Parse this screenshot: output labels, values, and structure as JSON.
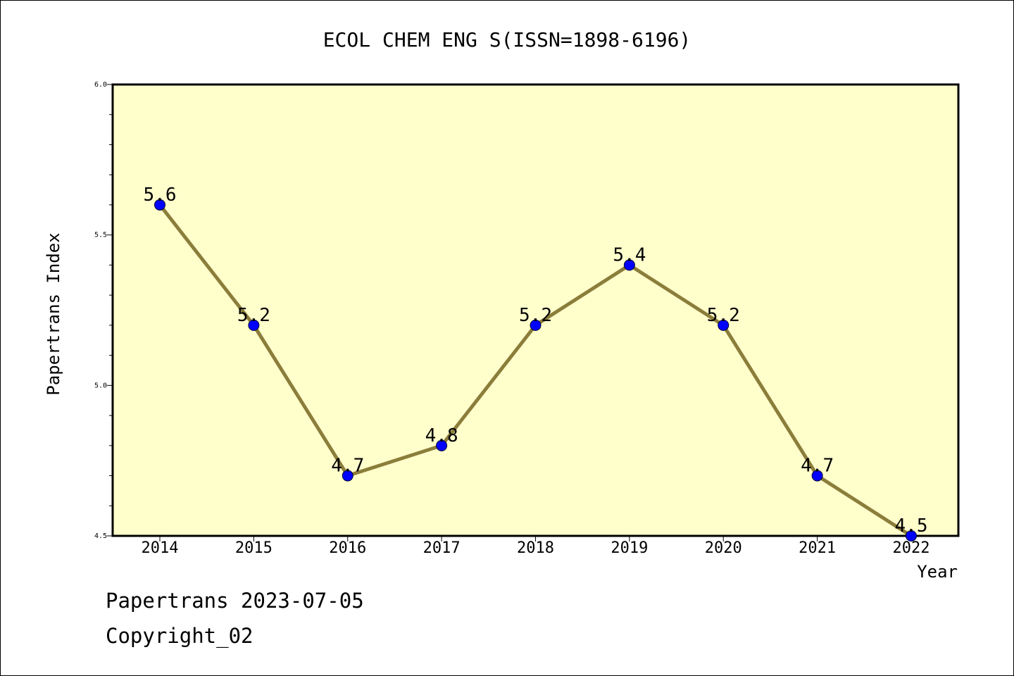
{
  "chart_data": {
    "type": "line",
    "title": "ECOL CHEM ENG S(ISSN=1898-6196)",
    "xlabel": "Year",
    "ylabel": "Papertrans Index",
    "categories": [
      "2014",
      "2015",
      "2016",
      "2017",
      "2018",
      "2019",
      "2020",
      "2021",
      "2022"
    ],
    "series": [
      {
        "values": [
          5.6,
          5.2,
          4.7,
          4.8,
          5.2,
          5.4,
          5.2,
          4.7,
          4.5
        ]
      }
    ],
    "data_labels": [
      "5.6",
      "5.2",
      "4.7",
      "4.8",
      "5.2",
      "5.4",
      "5.2",
      "4.7",
      "4.5"
    ],
    "ylim": [
      4.5,
      6.0
    ],
    "yticks": [
      "4.5",
      "5.0",
      "5.5",
      "6.0"
    ],
    "grid": false,
    "colors": {
      "plot_background": "#ffffcc",
      "line": "#8b7d3a",
      "marker": "#0000ff"
    }
  },
  "footer": {
    "line1": "Papertrans 2023-07-05",
    "line2": "Copyright_02"
  }
}
